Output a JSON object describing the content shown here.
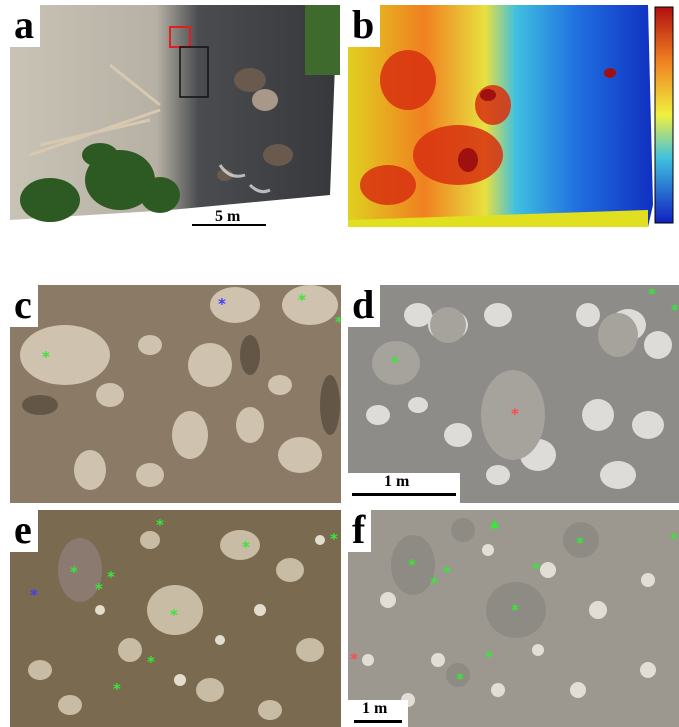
{
  "panels": {
    "a": {
      "label": "a",
      "scale_label": "5 m"
    },
    "b": {
      "label": "b"
    },
    "c": {
      "label": "c"
    },
    "d": {
      "label": "d",
      "scale_label": "1 m"
    },
    "e": {
      "label": "e"
    },
    "f": {
      "label": "f",
      "scale_label": "1 m"
    }
  },
  "markers": {
    "symbol": "*",
    "triangle_symbol": "▲",
    "colors": {
      "green": "#39e639",
      "blue": "#3d3dff",
      "red": "#ff4a4a"
    }
  },
  "colors": {
    "gravel": "#bdb6a8",
    "water": "#3a3c40",
    "vegetation": "#2e5a22",
    "colorbar_top": "#b01010",
    "colorbar_bottom": "#1020c0"
  }
}
